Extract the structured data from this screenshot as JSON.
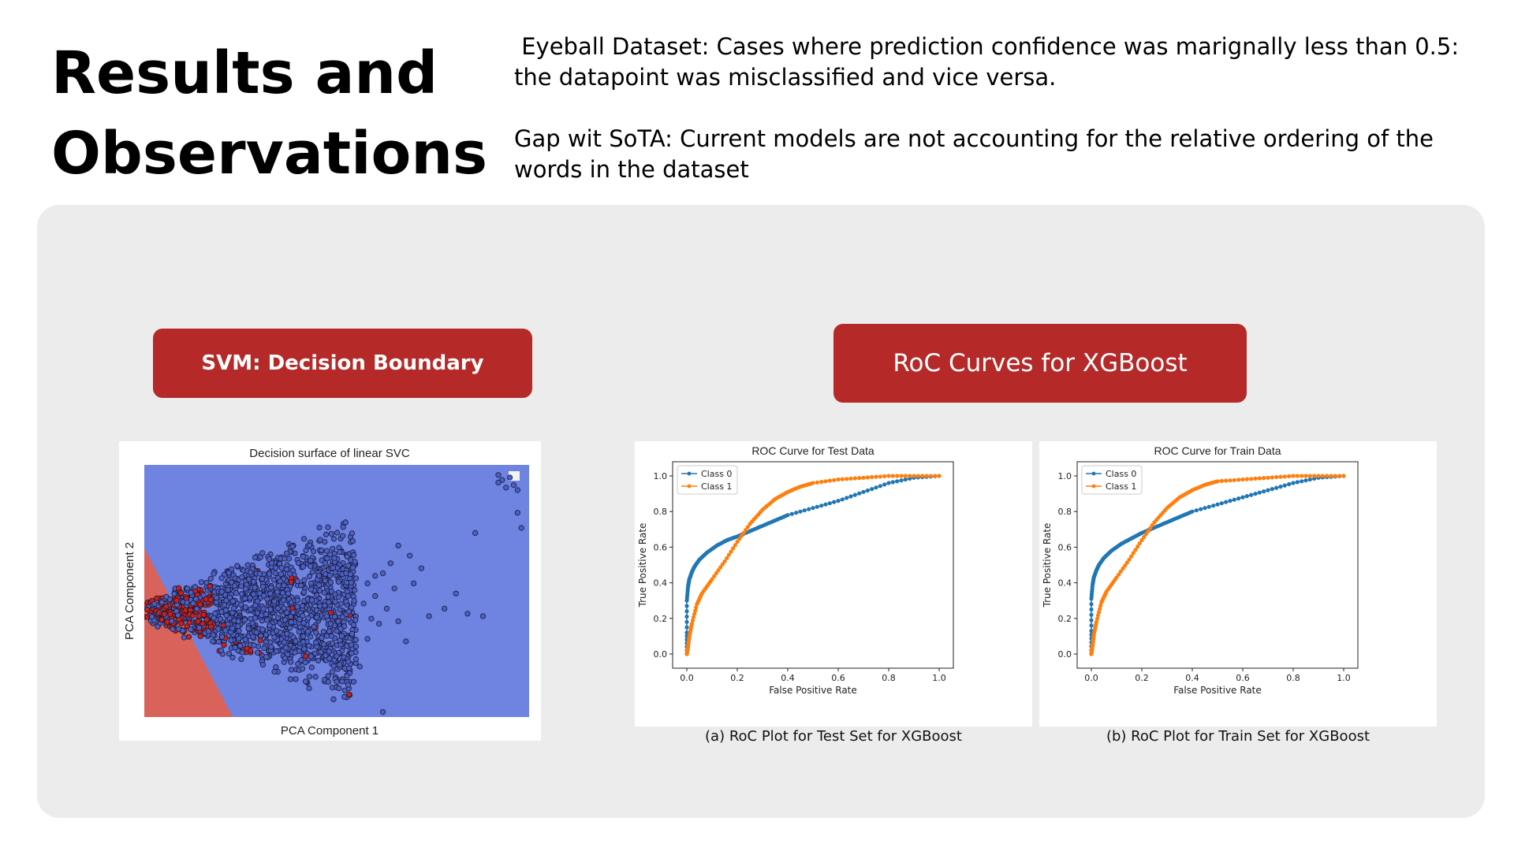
{
  "slide": {
    "title_line1": "Results and",
    "title_line2": "Observations",
    "note1": " Eyeball Dataset: Cases where prediction confidence was marignally less than 0.5: the datapoint was misclassified and vice versa.",
    "note2": "Gap wit SoTA: Current models are not accounting for the relative ordering of the words in the dataset",
    "svm_button": "SVM: Decision Boundary",
    "roc_button": "RoC Curves for XGBoost",
    "caption_test": "(a) RoC Plot for Test Set for XGBoost",
    "caption_train": "(b) RoC Plot for Train Set for XGBoost"
  },
  "colors": {
    "accent_red": "#b52a29",
    "svm_class_blue": "#6f83e0",
    "svm_class_red": "#d9635b",
    "class0": "#1f77b4",
    "class1": "#ff7f0e"
  },
  "chart_data": [
    {
      "type": "scatter",
      "title": "Decision surface of linear SVC",
      "xlabel": "PCA Component 1",
      "ylabel": "PCA Component 2",
      "legend": "top-right",
      "regions": [
        {
          "label_color": "#6f83e0",
          "region": "upper-right of boundary"
        },
        {
          "label_color": "#d9635b",
          "region": "lower-left of boundary"
        }
      ],
      "boundary": {
        "x_frac_top": 0.0,
        "y_frac_top": 0.33,
        "x_frac_bottom": 0.23,
        "y_frac_bottom": 1.0
      },
      "outlier_points": [
        [
          0.92,
          0.04
        ],
        [
          0.93,
          0.06
        ],
        [
          0.95,
          0.05
        ],
        [
          0.96,
          0.08
        ],
        [
          0.94,
          0.09
        ],
        [
          0.97,
          0.1
        ],
        [
          0.92,
          0.07
        ],
        [
          0.97,
          0.19
        ],
        [
          0.98,
          0.25
        ],
        [
          0.86,
          0.27
        ],
        [
          0.81,
          0.51
        ],
        [
          0.78,
          0.57
        ],
        [
          0.84,
          0.59
        ],
        [
          0.88,
          0.6
        ],
        [
          0.66,
          0.62
        ],
        [
          0.68,
          0.7
        ],
        [
          0.74,
          0.6
        ],
        [
          0.7,
          0.47
        ],
        [
          0.72,
          0.41
        ],
        [
          0.69,
          0.36
        ],
        [
          0.66,
          0.32
        ],
        [
          0.64,
          0.39
        ],
        [
          0.62,
          0.43
        ],
        [
          0.6,
          0.52
        ],
        [
          0.57,
          0.55
        ],
        [
          0.59,
          0.61
        ],
        [
          0.61,
          0.63
        ],
        [
          0.58,
          0.69
        ],
        [
          0.55,
          0.72
        ],
        [
          0.53,
          0.78
        ],
        [
          0.56,
          0.8
        ],
        [
          0.62,
          0.98
        ],
        [
          0.5,
          0.86
        ],
        [
          0.52,
          0.92
        ],
        [
          0.48,
          0.74
        ],
        [
          0.54,
          0.67
        ],
        [
          0.51,
          0.65
        ],
        [
          0.63,
          0.57
        ],
        [
          0.65,
          0.49
        ],
        [
          0.58,
          0.47
        ],
        [
          0.55,
          0.45
        ],
        [
          0.6,
          0.44
        ]
      ]
    },
    {
      "type": "line",
      "title": "ROC Curve for Test Data",
      "xlabel": "False Positive Rate",
      "ylabel": "True Positive Rate",
      "xlim": [
        0,
        1
      ],
      "ylim": [
        0,
        1
      ],
      "xticks": [
        "0.0",
        "0.2",
        "0.4",
        "0.6",
        "0.8",
        "1.0"
      ],
      "yticks": [
        "0.0",
        "0.2",
        "0.4",
        "0.6",
        "0.8",
        "1.0"
      ],
      "legend": "top-left",
      "series": [
        {
          "name": "Class 0",
          "color": "#1f77b4",
          "x": [
            0.0,
            0.0,
            0.0,
            0.005,
            0.01,
            0.02,
            0.03,
            0.05,
            0.08,
            0.12,
            0.16,
            0.2,
            0.25,
            0.3,
            0.35,
            0.4,
            0.5,
            0.6,
            0.7,
            0.8,
            0.9,
            1.0
          ],
          "y": [
            0.0,
            0.12,
            0.3,
            0.38,
            0.42,
            0.46,
            0.49,
            0.53,
            0.57,
            0.61,
            0.64,
            0.66,
            0.69,
            0.72,
            0.75,
            0.78,
            0.82,
            0.86,
            0.91,
            0.96,
            0.99,
            1.0
          ]
        },
        {
          "name": "Class 1",
          "color": "#ff7f0e",
          "x": [
            0.0,
            0.005,
            0.01,
            0.02,
            0.04,
            0.06,
            0.1,
            0.15,
            0.2,
            0.25,
            0.3,
            0.35,
            0.4,
            0.45,
            0.5,
            0.6,
            0.7,
            0.8,
            0.9,
            1.0
          ],
          "y": [
            0.0,
            0.04,
            0.1,
            0.17,
            0.28,
            0.34,
            0.42,
            0.52,
            0.63,
            0.73,
            0.81,
            0.87,
            0.91,
            0.94,
            0.96,
            0.98,
            0.99,
            1.0,
            1.0,
            1.0
          ]
        }
      ]
    },
    {
      "type": "line",
      "title": "ROC Curve for Train Data",
      "xlabel": "False Positive Rate",
      "ylabel": "True Positive Rate",
      "xlim": [
        0,
        1
      ],
      "ylim": [
        0,
        1
      ],
      "xticks": [
        "0.0",
        "0.2",
        "0.4",
        "0.6",
        "0.8",
        "1.0"
      ],
      "yticks": [
        "0.0",
        "0.2",
        "0.4",
        "0.6",
        "0.8",
        "1.0"
      ],
      "legend": "top-left",
      "series": [
        {
          "name": "Class 0",
          "color": "#1f77b4",
          "x": [
            0.0,
            0.0,
            0.0,
            0.005,
            0.01,
            0.02,
            0.03,
            0.05,
            0.08,
            0.12,
            0.16,
            0.2,
            0.25,
            0.3,
            0.35,
            0.4,
            0.5,
            0.6,
            0.7,
            0.8,
            0.9,
            1.0
          ],
          "y": [
            0.0,
            0.13,
            0.31,
            0.39,
            0.43,
            0.47,
            0.5,
            0.54,
            0.58,
            0.62,
            0.65,
            0.68,
            0.71,
            0.74,
            0.77,
            0.8,
            0.84,
            0.88,
            0.92,
            0.96,
            0.99,
            1.0
          ]
        },
        {
          "name": "Class 1",
          "color": "#ff7f0e",
          "x": [
            0.0,
            0.005,
            0.01,
            0.02,
            0.04,
            0.06,
            0.1,
            0.15,
            0.2,
            0.25,
            0.3,
            0.35,
            0.4,
            0.45,
            0.5,
            0.6,
            0.7,
            0.8,
            0.9,
            1.0
          ],
          "y": [
            0.0,
            0.05,
            0.11,
            0.18,
            0.29,
            0.35,
            0.43,
            0.53,
            0.64,
            0.74,
            0.82,
            0.88,
            0.92,
            0.95,
            0.97,
            0.98,
            0.99,
            1.0,
            1.0,
            1.0
          ]
        }
      ]
    }
  ]
}
